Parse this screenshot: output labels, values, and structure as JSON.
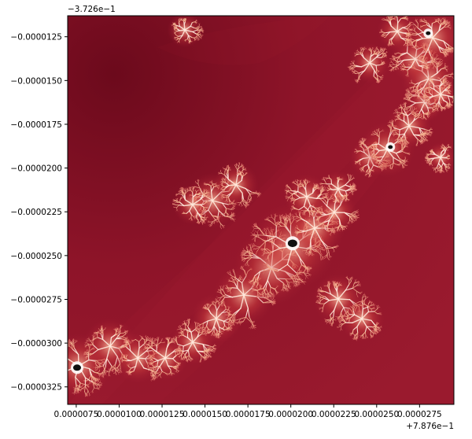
{
  "chart_data": {
    "type": "heatmap",
    "colormap": "reds (dark red background, white/pink filaments, black interior)",
    "grid": false,
    "x_offset_text": "+7.876e−1",
    "y_offset_text": "−3.726e−1",
    "x_ticks": [
      {
        "value": 7.5e-06,
        "label": "0.0000075"
      },
      {
        "value": 1e-05,
        "label": "0.0000100"
      },
      {
        "value": 1.25e-05,
        "label": "0.0000125"
      },
      {
        "value": 1.5e-05,
        "label": "0.0000150"
      },
      {
        "value": 1.75e-05,
        "label": "0.0000175"
      },
      {
        "value": 2e-05,
        "label": "0.0000200"
      },
      {
        "value": 2.25e-05,
        "label": "0.0000225"
      },
      {
        "value": 2.5e-05,
        "label": "0.0000250"
      },
      {
        "value": 2.75e-05,
        "label": "0.0000275"
      }
    ],
    "y_ticks": [
      {
        "value": -1.25e-05,
        "label": "−0.0000125"
      },
      {
        "value": -1.5e-05,
        "label": "−0.0000150"
      },
      {
        "value": -1.75e-05,
        "label": "−0.0000175"
      },
      {
        "value": -2e-05,
        "label": "−0.0000200"
      },
      {
        "value": -2.25e-05,
        "label": "−0.0000225"
      },
      {
        "value": -2.5e-05,
        "label": "−0.0000250"
      },
      {
        "value": -2.75e-05,
        "label": "−0.0000275"
      },
      {
        "value": -3e-05,
        "label": "−0.0000300"
      },
      {
        "value": -3.25e-05,
        "label": "−0.0000325"
      }
    ],
    "xlim": [
      7e-06,
      2.95e-05
    ],
    "ylim": [
      -3.35e-05,
      -1.13e-05
    ],
    "colors": {
      "background": "#8c1428",
      "background_dark": "#6c0a1c",
      "filament": "#f6c8aa",
      "filament_core": "#ffffff",
      "interior": "#111111"
    },
    "minibrots": [
      {
        "x": 2.01e-05,
        "y": -2.43e-05
      },
      {
        "x": 7.55e-06,
        "y": -3.14e-05
      },
      {
        "x": 2.58e-05,
        "y": -1.88e-05
      },
      {
        "x": 2.8e-05,
        "y": -1.23e-05
      }
    ]
  }
}
